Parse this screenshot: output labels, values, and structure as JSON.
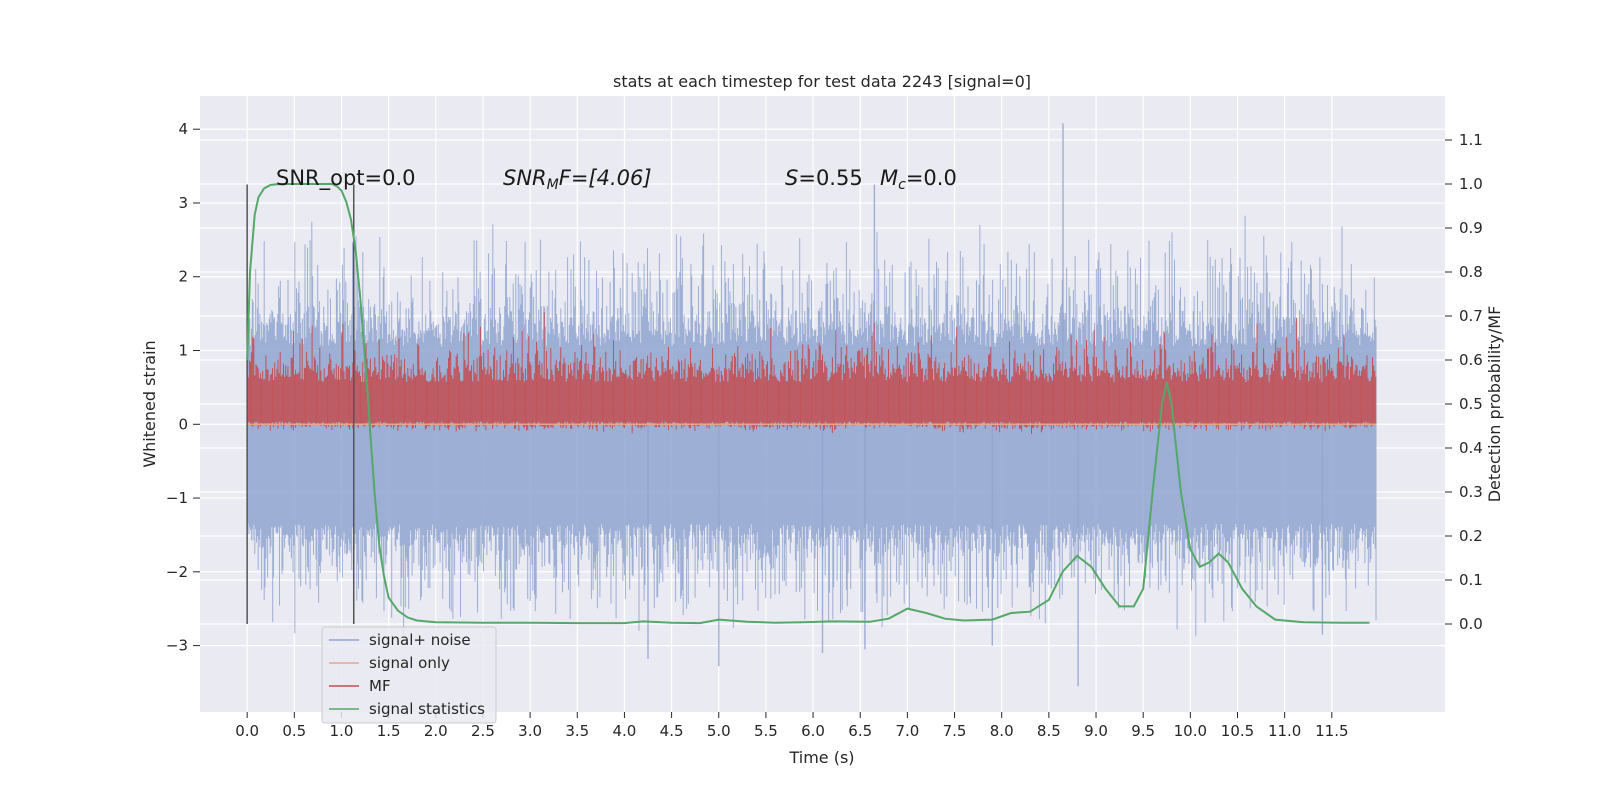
{
  "chart_data": {
    "type": "line",
    "title": "stats at each timestep for test data 2243 [signal=0]",
    "xlabel": "Time (s)",
    "ylabel": "Whitened strain",
    "y2label": "Detection probability/MF",
    "xlim": [
      -0.5,
      12.7
    ],
    "ylim": [
      -3.9,
      4.45
    ],
    "y2lim": [
      -0.2,
      1.2
    ],
    "x_ticks": [
      "0.0",
      "0.5",
      "1.0",
      "1.5",
      "2.0",
      "2.5",
      "3.0",
      "3.5",
      "4.0",
      "4.5",
      "5.0",
      "5.5",
      "6.0",
      "6.5",
      "7.0",
      "7.5",
      "8.0",
      "8.5",
      "9.0",
      "9.5",
      "10.0",
      "10.5",
      "11.0",
      "11.5"
    ],
    "y_ticks": [
      "4",
      "3",
      "2",
      "1",
      "0",
      "−1",
      "−2",
      "−3"
    ],
    "y2_ticks": [
      "1.1",
      "1.0",
      "0.9",
      "0.8",
      "0.7",
      "0.6",
      "0.5",
      "0.4",
      "0.3",
      "0.2",
      "0.1",
      "0.0"
    ],
    "grid": true,
    "legend_position": "lower-left",
    "annotations": {
      "snr_opt": "SNR_opt=0.0",
      "snr_mf_var": "SNR",
      "snr_mf_sub": "M",
      "snr_mf_rest": "F=[4.06]",
      "s_var": "S",
      "s_rest": "=0.55",
      "mc_var": "M",
      "mc_sub": "c",
      "mc_rest": "=0.0"
    },
    "vertical_markers_x": [
      0.0,
      1.13
    ],
    "series": [
      {
        "name": "signal+ noise",
        "axis": "left",
        "color": "#8fa5cf",
        "kind": "noise",
        "x_range": [
          0.0,
          11.97
        ],
        "spikes": [
          [
            8.65,
            4.08
          ],
          [
            6.65,
            3.25
          ],
          [
            8.81,
            -3.55
          ],
          [
            5.0,
            -3.28
          ],
          [
            4.25,
            -3.18
          ],
          [
            6.1,
            -3.1
          ],
          [
            6.55,
            -3.05
          ],
          [
            11.4,
            -2.85
          ],
          [
            7.9,
            -3.0
          ]
        ]
      },
      {
        "name": "signal only",
        "axis": "left",
        "color": "#e8a58a",
        "kind": "flat",
        "value": 0.0
      },
      {
        "name": "MF",
        "axis": "left",
        "color": "#c44e52",
        "kind": "noise",
        "x_range": [
          0.0,
          11.97
        ]
      },
      {
        "name": "signal statistics",
        "axis": "right",
        "color": "#55a868",
        "kind": "curve",
        "x": [
          0.0,
          0.03,
          0.08,
          0.12,
          0.18,
          0.25,
          0.35,
          0.5,
          0.7,
          0.9,
          0.95,
          1.0,
          1.05,
          1.1,
          1.15,
          1.2,
          1.25,
          1.3,
          1.35,
          1.4,
          1.45,
          1.5,
          1.6,
          1.7,
          1.8,
          2.0,
          2.5,
          3.0,
          3.5,
          4.0,
          4.2,
          4.5,
          4.8,
          5.0,
          5.3,
          5.6,
          5.9,
          6.2,
          6.6,
          6.8,
          7.0,
          7.2,
          7.4,
          7.6,
          7.9,
          8.1,
          8.3,
          8.5,
          8.65,
          8.8,
          8.95,
          9.1,
          9.25,
          9.4,
          9.5,
          9.6,
          9.7,
          9.75,
          9.8,
          9.9,
          10.0,
          10.1,
          10.2,
          10.3,
          10.4,
          10.55,
          10.7,
          10.9,
          11.2,
          11.6,
          11.9
        ],
        "y": [
          0.6,
          0.8,
          0.93,
          0.97,
          0.99,
          0.998,
          1.0,
          1.0,
          1.0,
          1.0,
          0.995,
          0.985,
          0.96,
          0.92,
          0.85,
          0.74,
          0.6,
          0.45,
          0.3,
          0.18,
          0.11,
          0.06,
          0.03,
          0.015,
          0.008,
          0.004,
          0.003,
          0.003,
          0.002,
          0.002,
          0.006,
          0.003,
          0.002,
          0.01,
          0.005,
          0.003,
          0.004,
          0.006,
          0.005,
          0.012,
          0.035,
          0.025,
          0.012,
          0.008,
          0.01,
          0.025,
          0.028,
          0.055,
          0.12,
          0.155,
          0.13,
          0.08,
          0.04,
          0.04,
          0.08,
          0.3,
          0.5,
          0.55,
          0.5,
          0.3,
          0.17,
          0.13,
          0.14,
          0.16,
          0.14,
          0.08,
          0.04,
          0.01,
          0.004,
          0.003,
          0.003
        ]
      }
    ]
  }
}
